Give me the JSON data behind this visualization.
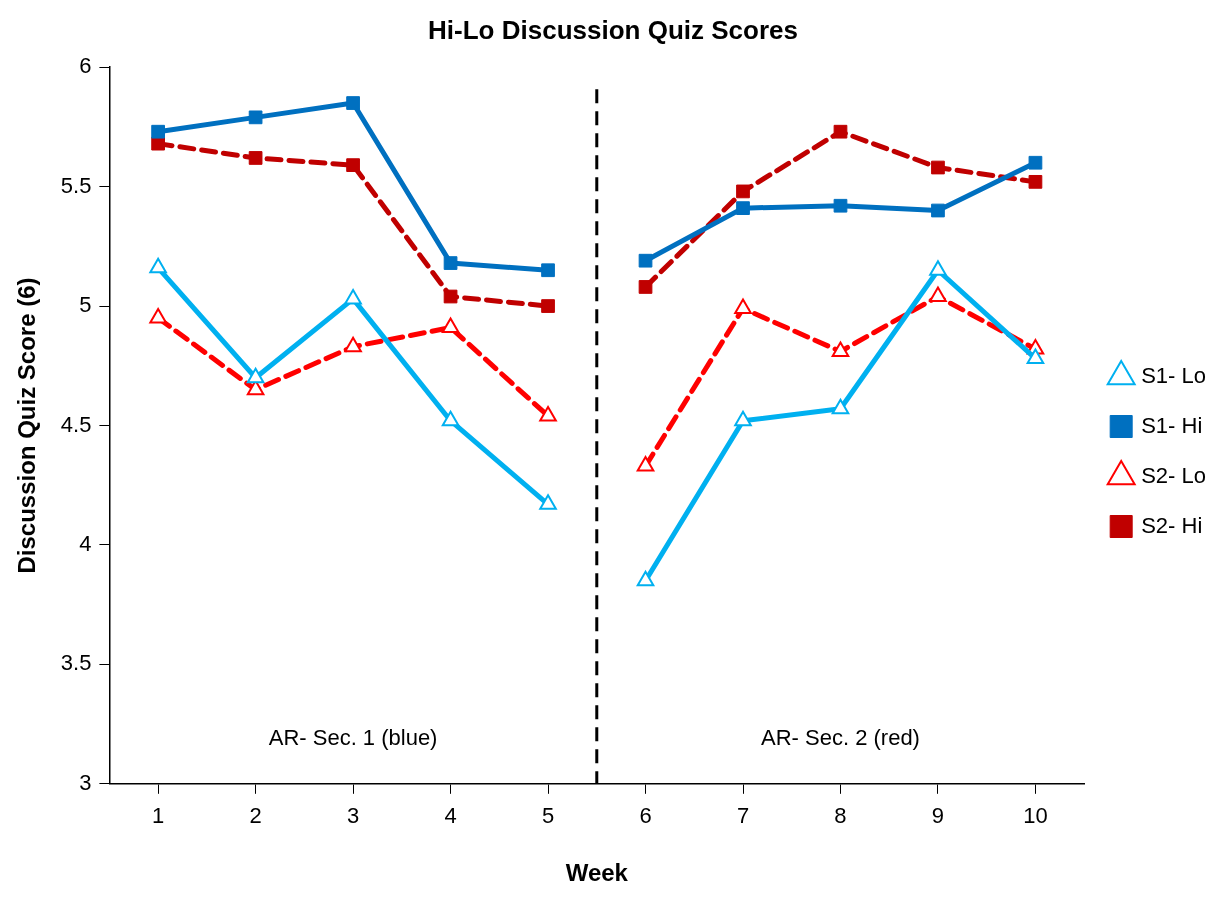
{
  "chart_data": {
    "type": "line",
    "title": "Hi-Lo Discussion Quiz Scores",
    "xlabel": "Week",
    "ylabel": "Discussion Quiz Score (6)",
    "x": [
      1,
      2,
      3,
      4,
      5,
      6,
      7,
      8,
      9,
      10
    ],
    "xlim": [
      0.5,
      10.5
    ],
    "xticks": [
      1,
      2,
      3,
      4,
      5,
      6,
      7,
      8,
      9,
      10
    ],
    "ylim": [
      3,
      6
    ],
    "yticks": [
      3,
      3.5,
      4,
      4.5,
      5,
      5.5,
      6
    ],
    "grid": false,
    "legend": "right",
    "series": [
      {
        "name": "S1- Lo",
        "color": "#00b0f0",
        "marker": "triangle",
        "line_style": "solid",
        "values": [
          5.16,
          4.7,
          5.03,
          4.52,
          4.17,
          3.85,
          4.52,
          4.57,
          5.15,
          4.78
        ]
      },
      {
        "name": "S1- Hi",
        "color": "#0070c0",
        "marker": "square",
        "line_style": "solid",
        "values": [
          5.73,
          5.79,
          5.85,
          5.18,
          5.15,
          5.19,
          5.41,
          5.42,
          5.4,
          5.6
        ]
      },
      {
        "name": "S2- Lo",
        "color": "#ff0000",
        "marker": "triangle",
        "line_style": "dashed",
        "values": [
          4.95,
          4.65,
          4.83,
          4.91,
          4.54,
          4.33,
          4.99,
          4.81,
          5.04,
          4.82
        ]
      },
      {
        "name": "S2- Hi",
        "color": "#c00000",
        "marker": "square",
        "line_style": "dashed",
        "values": [
          5.68,
          5.62,
          5.59,
          5.04,
          5.0,
          5.08,
          5.48,
          5.73,
          5.58,
          5.52
        ]
      }
    ],
    "ref_lines": [
      {
        "axis": "x",
        "value": 5.5,
        "color": "#000000",
        "line_style": "dashed"
      }
    ],
    "annotations": [
      "AR- Sec. 1 (blue)",
      "AR- Sec. 2 (red)"
    ]
  }
}
